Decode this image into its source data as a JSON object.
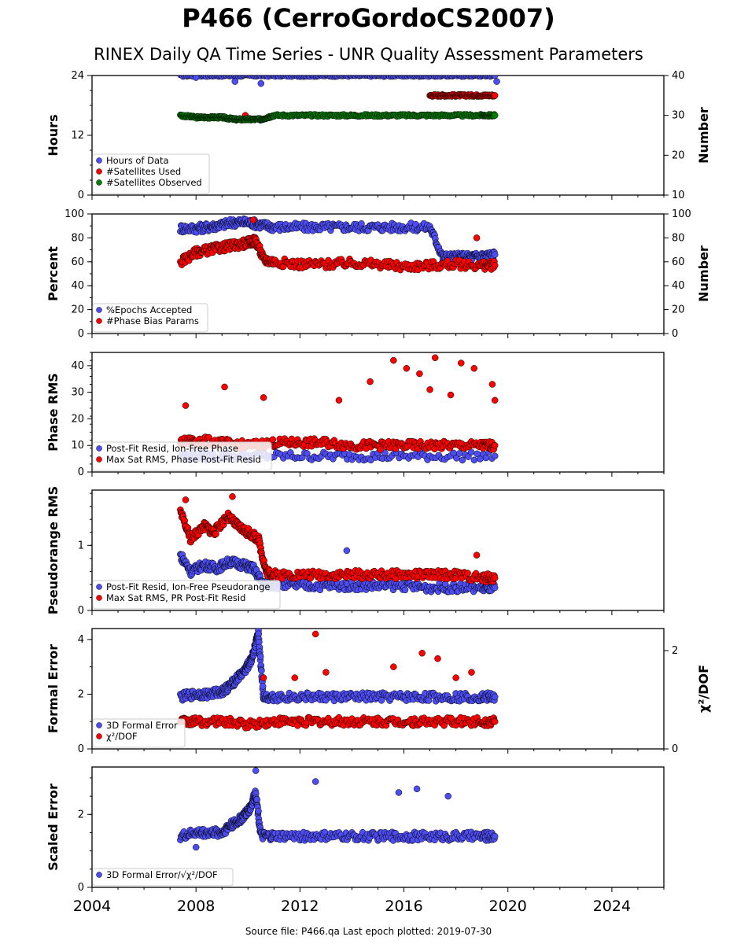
{
  "header": {
    "title": "P466 (CerroGordoCS2007)",
    "subtitle": "RINEX Daily QA Time Series - UNR Quality Assessment Parameters"
  },
  "footer": {
    "source_text": "Source file: P466.qa Last epoch plotted: 2019-07-30"
  },
  "colors": {
    "blue": "#4d4df2",
    "red": "#ff0000",
    "green": "#008000",
    "edge": "#000000"
  },
  "chart_data": [
    {
      "type": "scatter",
      "ylabel": "Hours",
      "ylabel_right": "Number",
      "ylim": [
        0,
        24
      ],
      "yticks": [
        "0",
        "12",
        "24"
      ],
      "ylim_right": [
        10,
        40
      ],
      "yticks_right": [
        "10",
        "20",
        "30",
        "40"
      ],
      "xlim": [
        2004,
        2026
      ],
      "legend": "lower-left",
      "series": [
        {
          "name": "Hours of Data",
          "color": "#4d4df2",
          "axis": "left",
          "x": [
            2007.4,
            2008.5,
            2009.5,
            2010.5,
            2011.5,
            2012.5,
            2013.5,
            2014.5,
            2015.5,
            2016.5,
            2017.5,
            2018.5,
            2019.5
          ],
          "y": [
            24,
            24,
            24,
            24,
            24,
            24,
            24,
            24,
            24,
            24,
            24,
            24,
            24
          ],
          "outliers": [
            [
              2008.0,
              23.6
            ],
            [
              2009.5,
              22.8
            ],
            [
              2010.5,
              22.4
            ],
            [
              2019.57,
              22.8
            ]
          ]
        },
        {
          "name": "#Satellites Used",
          "color": "#ff0000",
          "axis": "right",
          "x": [
            2017.0,
            2017.5,
            2018.0,
            2018.5,
            2019.0,
            2019.5
          ],
          "y": [
            35,
            35,
            35,
            35,
            35,
            35
          ],
          "outliers": [
            [
              2009.9,
              30
            ]
          ]
        },
        {
          "name": "#Satellites Observed",
          "color": "#008000",
          "axis": "right",
          "x": [
            2007.4,
            2008.0,
            2008.5,
            2009.0,
            2009.5,
            2010.0,
            2010.5,
            2011.0,
            2012.0,
            2013.0,
            2014.0,
            2015.0,
            2016.0,
            2017.0,
            2018.0,
            2019.0,
            2019.5
          ],
          "y": [
            30,
            29.5,
            29.5,
            29.5,
            29,
            29,
            29,
            30,
            30,
            30,
            30,
            30,
            30,
            30,
            30,
            30,
            30
          ]
        }
      ]
    },
    {
      "type": "scatter",
      "ylabel": "Percent",
      "ylabel_right": "Number",
      "ylim": [
        0,
        100
      ],
      "yticks": [
        "0",
        "20",
        "40",
        "60",
        "80",
        "100"
      ],
      "yticks_right": [
        "0",
        "20",
        "40",
        "60",
        "80",
        "100"
      ],
      "xlim": [
        2004,
        2026
      ],
      "legend": "lower-left",
      "series": [
        {
          "name": "%Epochs Accepted",
          "color": "#4d4df2",
          "x": [
            2007.4,
            2008.0,
            2008.5,
            2009.0,
            2009.5,
            2010.0,
            2010.5,
            2011.0,
            2012.0,
            2013.0,
            2014.0,
            2015.0,
            2016.0,
            2017.0,
            2017.5,
            2018.0,
            2018.5,
            2019.0,
            2019.5
          ],
          "y": [
            88,
            88,
            89,
            91,
            93,
            93,
            91,
            89,
            89,
            89,
            89,
            89,
            89,
            89,
            64,
            64,
            64,
            65,
            66
          ]
        },
        {
          "name": "#Phase Bias Params",
          "color": "#ff0000",
          "x": [
            2007.4,
            2008.0,
            2008.5,
            2009.0,
            2009.5,
            2010.0,
            2010.3,
            2010.6,
            2011.0,
            2012.0,
            2013.0,
            2014.0,
            2015.0,
            2016.0,
            2017.0,
            2018.0,
            2019.0,
            2019.5
          ],
          "y": [
            60,
            68,
            70,
            72,
            74,
            76,
            78,
            62,
            60,
            58,
            58,
            59,
            58,
            56,
            57,
            58,
            57,
            57
          ],
          "outliers": [
            [
              2018.8,
              80
            ],
            [
              2010.2,
              95
            ]
          ]
        }
      ]
    },
    {
      "type": "scatter",
      "ylabel": "Phase RMS",
      "ylim": [
        0,
        45
      ],
      "yticks": [
        "0",
        "10",
        "20",
        "30",
        "40"
      ],
      "xlim": [
        2004,
        2026
      ],
      "legend": "lower-left",
      "series": [
        {
          "name": "Post-Fit Resid, Ion-Free Phase",
          "color": "#4d4df2",
          "x": [
            2007.4,
            2009.0,
            2011.0,
            2013.0,
            2015.0,
            2017.0,
            2019.5
          ],
          "y": [
            6,
            6,
            6,
            6,
            6,
            6,
            6
          ]
        },
        {
          "name": "Max Sat RMS, Phase Post-Fit Resid",
          "color": "#ff0000",
          "x": [
            2007.4,
            2008.0,
            2009.0,
            2010.0,
            2011.0,
            2012.0,
            2013.0,
            2014.0,
            2015.0,
            2016.0,
            2017.0,
            2018.0,
            2019.0,
            2019.5
          ],
          "y": [
            11,
            12,
            11,
            10,
            11,
            11,
            11,
            10,
            10,
            10,
            10,
            10,
            10,
            10
          ],
          "outliers": [
            [
              2007.6,
              25
            ],
            [
              2009.1,
              32
            ],
            [
              2010.6,
              28
            ],
            [
              2013.5,
              27
            ],
            [
              2014.7,
              34
            ],
            [
              2015.6,
              42
            ],
            [
              2016.1,
              39
            ],
            [
              2016.6,
              37
            ],
            [
              2017.0,
              31
            ],
            [
              2017.2,
              43
            ],
            [
              2017.8,
              29
            ],
            [
              2018.2,
              41
            ],
            [
              2018.7,
              39
            ],
            [
              2019.4,
              33
            ],
            [
              2019.5,
              27
            ]
          ]
        }
      ]
    },
    {
      "type": "scatter",
      "ylabel": "Pseudorange RMS",
      "ylim": [
        0,
        1.85
      ],
      "yticks": [
        "0",
        "1"
      ],
      "xlim": [
        2004,
        2026
      ],
      "legend": "lower-left",
      "series": [
        {
          "name": "Post-Fit Resid, Ion-Free Pseudorange",
          "color": "#4d4df2",
          "x": [
            2007.4,
            2007.8,
            2008.3,
            2008.8,
            2009.3,
            2009.8,
            2010.2,
            2010.6,
            2011.0,
            2012.0,
            2013.0,
            2014.0,
            2015.0,
            2016.0,
            2017.0,
            2018.0,
            2019.0,
            2019.5
          ],
          "y": [
            0.85,
            0.6,
            0.7,
            0.65,
            0.75,
            0.7,
            0.65,
            0.4,
            0.4,
            0.38,
            0.38,
            0.38,
            0.38,
            0.38,
            0.35,
            0.35,
            0.35,
            0.35
          ],
          "outliers": [
            [
              2013.8,
              0.92
            ]
          ]
        },
        {
          "name": "Max Sat RMS, PR Post-Fit Resid",
          "color": "#ff0000",
          "x": [
            2007.4,
            2007.8,
            2008.3,
            2008.7,
            2009.2,
            2009.6,
            2010.0,
            2010.4,
            2010.7,
            2011.0,
            2012.0,
            2013.0,
            2014.0,
            2015.0,
            2016.0,
            2017.0,
            2018.0,
            2019.0,
            2019.5
          ],
          "y": [
            1.5,
            1.1,
            1.3,
            1.2,
            1.45,
            1.3,
            1.2,
            1.1,
            0.6,
            0.55,
            0.55,
            0.55,
            0.55,
            0.55,
            0.55,
            0.55,
            0.55,
            0.5,
            0.5
          ],
          "outliers": [
            [
              2009.4,
              1.75
            ],
            [
              2007.6,
              1.7
            ],
            [
              2018.8,
              0.85
            ]
          ]
        }
      ]
    },
    {
      "type": "scatter",
      "ylabel": "Formal Error",
      "ylabel_right": "χ²/DOF",
      "ylim": [
        0,
        4.4
      ],
      "yticks": [
        "0",
        "2",
        "4"
      ],
      "ylim_right": [
        0,
        2.45
      ],
      "yticks_right": [
        "0",
        "2"
      ],
      "xlim": [
        2004,
        2026
      ],
      "legend": "lower-left",
      "series": [
        {
          "name": "3D Formal Error",
          "color": "#4d4df2",
          "x": [
            2007.4,
            2008.0,
            2008.5,
            2009.0,
            2009.3,
            2009.6,
            2009.9,
            2010.1,
            2010.3,
            2010.4,
            2010.6,
            2011.0,
            2012.0,
            2013.0,
            2014.0,
            2015.0,
            2016.0,
            2017.0,
            2018.0,
            2019.0,
            2019.5
          ],
          "y": [
            1.9,
            2.0,
            2.0,
            2.1,
            2.3,
            2.6,
            2.9,
            3.2,
            3.8,
            4.2,
            1.9,
            1.9,
            1.9,
            1.9,
            1.9,
            1.9,
            1.9,
            1.9,
            1.9,
            1.9,
            1.9
          ]
        },
        {
          "name": "χ²/DOF",
          "color": "#ff0000",
          "x": [
            2007.4,
            2008.0,
            2009.0,
            2010.0,
            2011.0,
            2012.0,
            2013.0,
            2014.0,
            2015.0,
            2016.0,
            2017.0,
            2018.0,
            2019.0,
            2019.5
          ],
          "y": [
            1.0,
            1.0,
            1.0,
            0.9,
            1.0,
            1.0,
            1.0,
            1.0,
            1.0,
            1.0,
            1.0,
            1.0,
            1.0,
            1.0
          ],
          "outliers": [
            [
              2012.6,
              4.2
            ],
            [
              2016.7,
              3.5
            ],
            [
              2017.3,
              3.3
            ],
            [
              2013.0,
              2.8
            ],
            [
              2015.6,
              3.0
            ],
            [
              2018.0,
              2.6
            ],
            [
              2010.6,
              2.6
            ],
            [
              2011.8,
              2.6
            ],
            [
              2018.6,
              2.8
            ]
          ]
        }
      ]
    },
    {
      "type": "scatter",
      "ylabel": "Scaled Error",
      "ylim": [
        0,
        3.3
      ],
      "yticks": [
        "0",
        "2"
      ],
      "xlim": [
        2004,
        2026
      ],
      "xticks": [
        "2004",
        "2008",
        "2012",
        "2016",
        "2020",
        "2024"
      ],
      "legend": "lower-left",
      "series": [
        {
          "name": "3D Formal Error/√χ²/DOF",
          "color": "#4d4df2",
          "x": [
            2007.4,
            2008.0,
            2008.5,
            2009.0,
            2009.3,
            2009.6,
            2009.9,
            2010.1,
            2010.3,
            2010.5,
            2011.0,
            2012.0,
            2013.0,
            2014.0,
            2015.0,
            2016.0,
            2017.0,
            2018.0,
            2019.0,
            2019.5
          ],
          "y": [
            1.4,
            1.5,
            1.5,
            1.5,
            1.7,
            1.8,
            2.0,
            2.2,
            2.6,
            1.4,
            1.4,
            1.4,
            1.4,
            1.4,
            1.4,
            1.4,
            1.4,
            1.4,
            1.4,
            1.4
          ],
          "outliers": [
            [
              2012.6,
              2.9
            ],
            [
              2010.3,
              3.2
            ],
            [
              2016.5,
              2.7
            ],
            [
              2017.7,
              2.5
            ],
            [
              2015.8,
              2.6
            ],
            [
              2008.0,
              1.1
            ]
          ]
        }
      ]
    }
  ]
}
